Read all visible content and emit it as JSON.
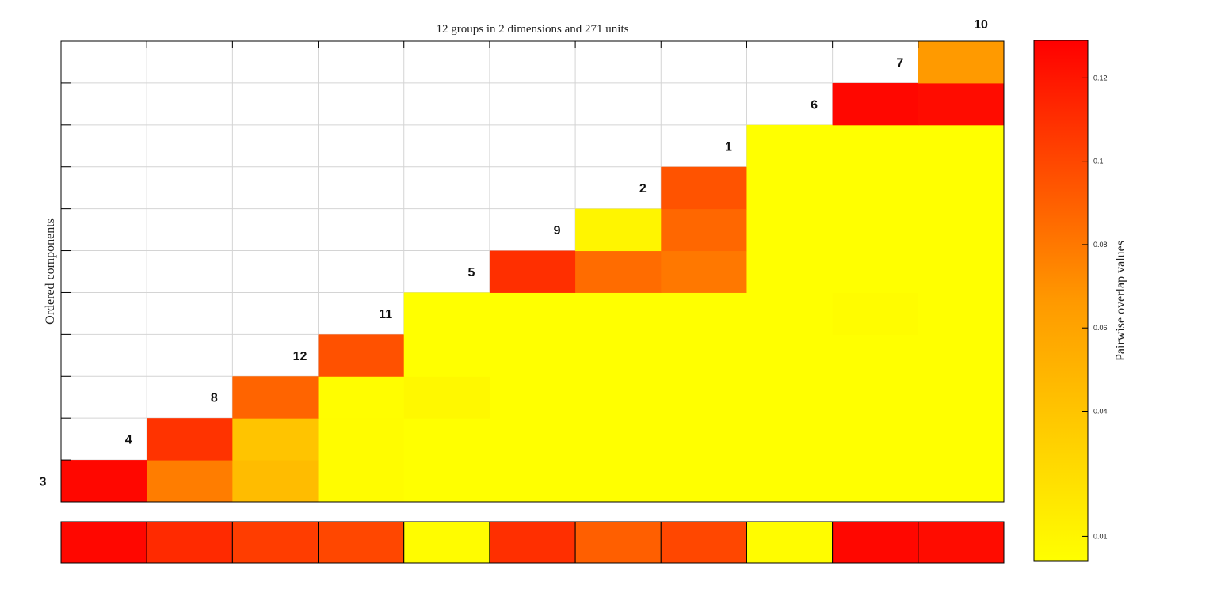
{
  "chart_data": {
    "type": "heatmap",
    "title": "12 groups in 2 dimensions and 271 units",
    "ylabel": "Ordered components",
    "colorbar_label": "Pairwise overlap values",
    "order": [
      "3",
      "4",
      "8",
      "12",
      "11",
      "5",
      "9",
      "2",
      "1",
      "6",
      "7",
      "10"
    ],
    "colormap": {
      "low": "#ffff00",
      "mid": "#ff9900",
      "high": "#ff0000"
    },
    "color_range": [
      0.004,
      0.129
    ],
    "colorbar_ticks": [
      "0.01",
      "0.04",
      "0.06",
      "0.08",
      "0.1",
      "0.12"
    ],
    "colorbar_tick_values": [
      0.01,
      0.04,
      0.06,
      0.08,
      0.1,
      0.12
    ],
    "grid": true,
    "matrix_comment_rows": "row index = component in order (upper row of block), column index = paired later component; values are overlaps",
    "pairs": [
      {
        "row": "3",
        "values": [
          0.126,
          0.078,
          0.045,
          0.006,
          0.004,
          0.004,
          0.004,
          0.004,
          0.004,
          0.004,
          0.004
        ]
      },
      {
        "row": "4",
        "values": [
          0.108,
          0.04,
          0.006,
          0.004,
          0.004,
          0.004,
          0.004,
          0.004,
          0.004,
          0.004
        ]
      },
      {
        "row": "8",
        "values": [
          0.088,
          0.005,
          0.008,
          0.004,
          0.004,
          0.004,
          0.004,
          0.004,
          0.004
        ]
      },
      {
        "row": "12",
        "values": [
          0.096,
          0.004,
          0.004,
          0.004,
          0.004,
          0.004,
          0.004,
          0.004
        ]
      },
      {
        "row": "11",
        "values": [
          0.004,
          0.004,
          0.004,
          0.004,
          0.004,
          0.006,
          0.004
        ]
      },
      {
        "row": "5",
        "values": [
          0.11,
          0.085,
          0.08,
          0.004,
          0.004,
          0.004
        ]
      },
      {
        "row": "9",
        "values": [
          0.01,
          0.087,
          0.004,
          0.004,
          0.004
        ]
      },
      {
        "row": "2",
        "values": [
          0.095,
          0.004,
          0.004,
          0.004
        ]
      },
      {
        "row": "1",
        "values": [
          0.004,
          0.004,
          0.004
        ]
      },
      {
        "row": "6",
        "values": [
          0.126,
          0.124
        ]
      },
      {
        "row": "7",
        "values": [
          0.066
        ]
      }
    ],
    "bottom_bar": [
      0.126,
      0.112,
      0.104,
      0.1,
      0.006,
      0.11,
      0.09,
      0.1,
      0.006,
      0.126,
      0.124
    ]
  }
}
